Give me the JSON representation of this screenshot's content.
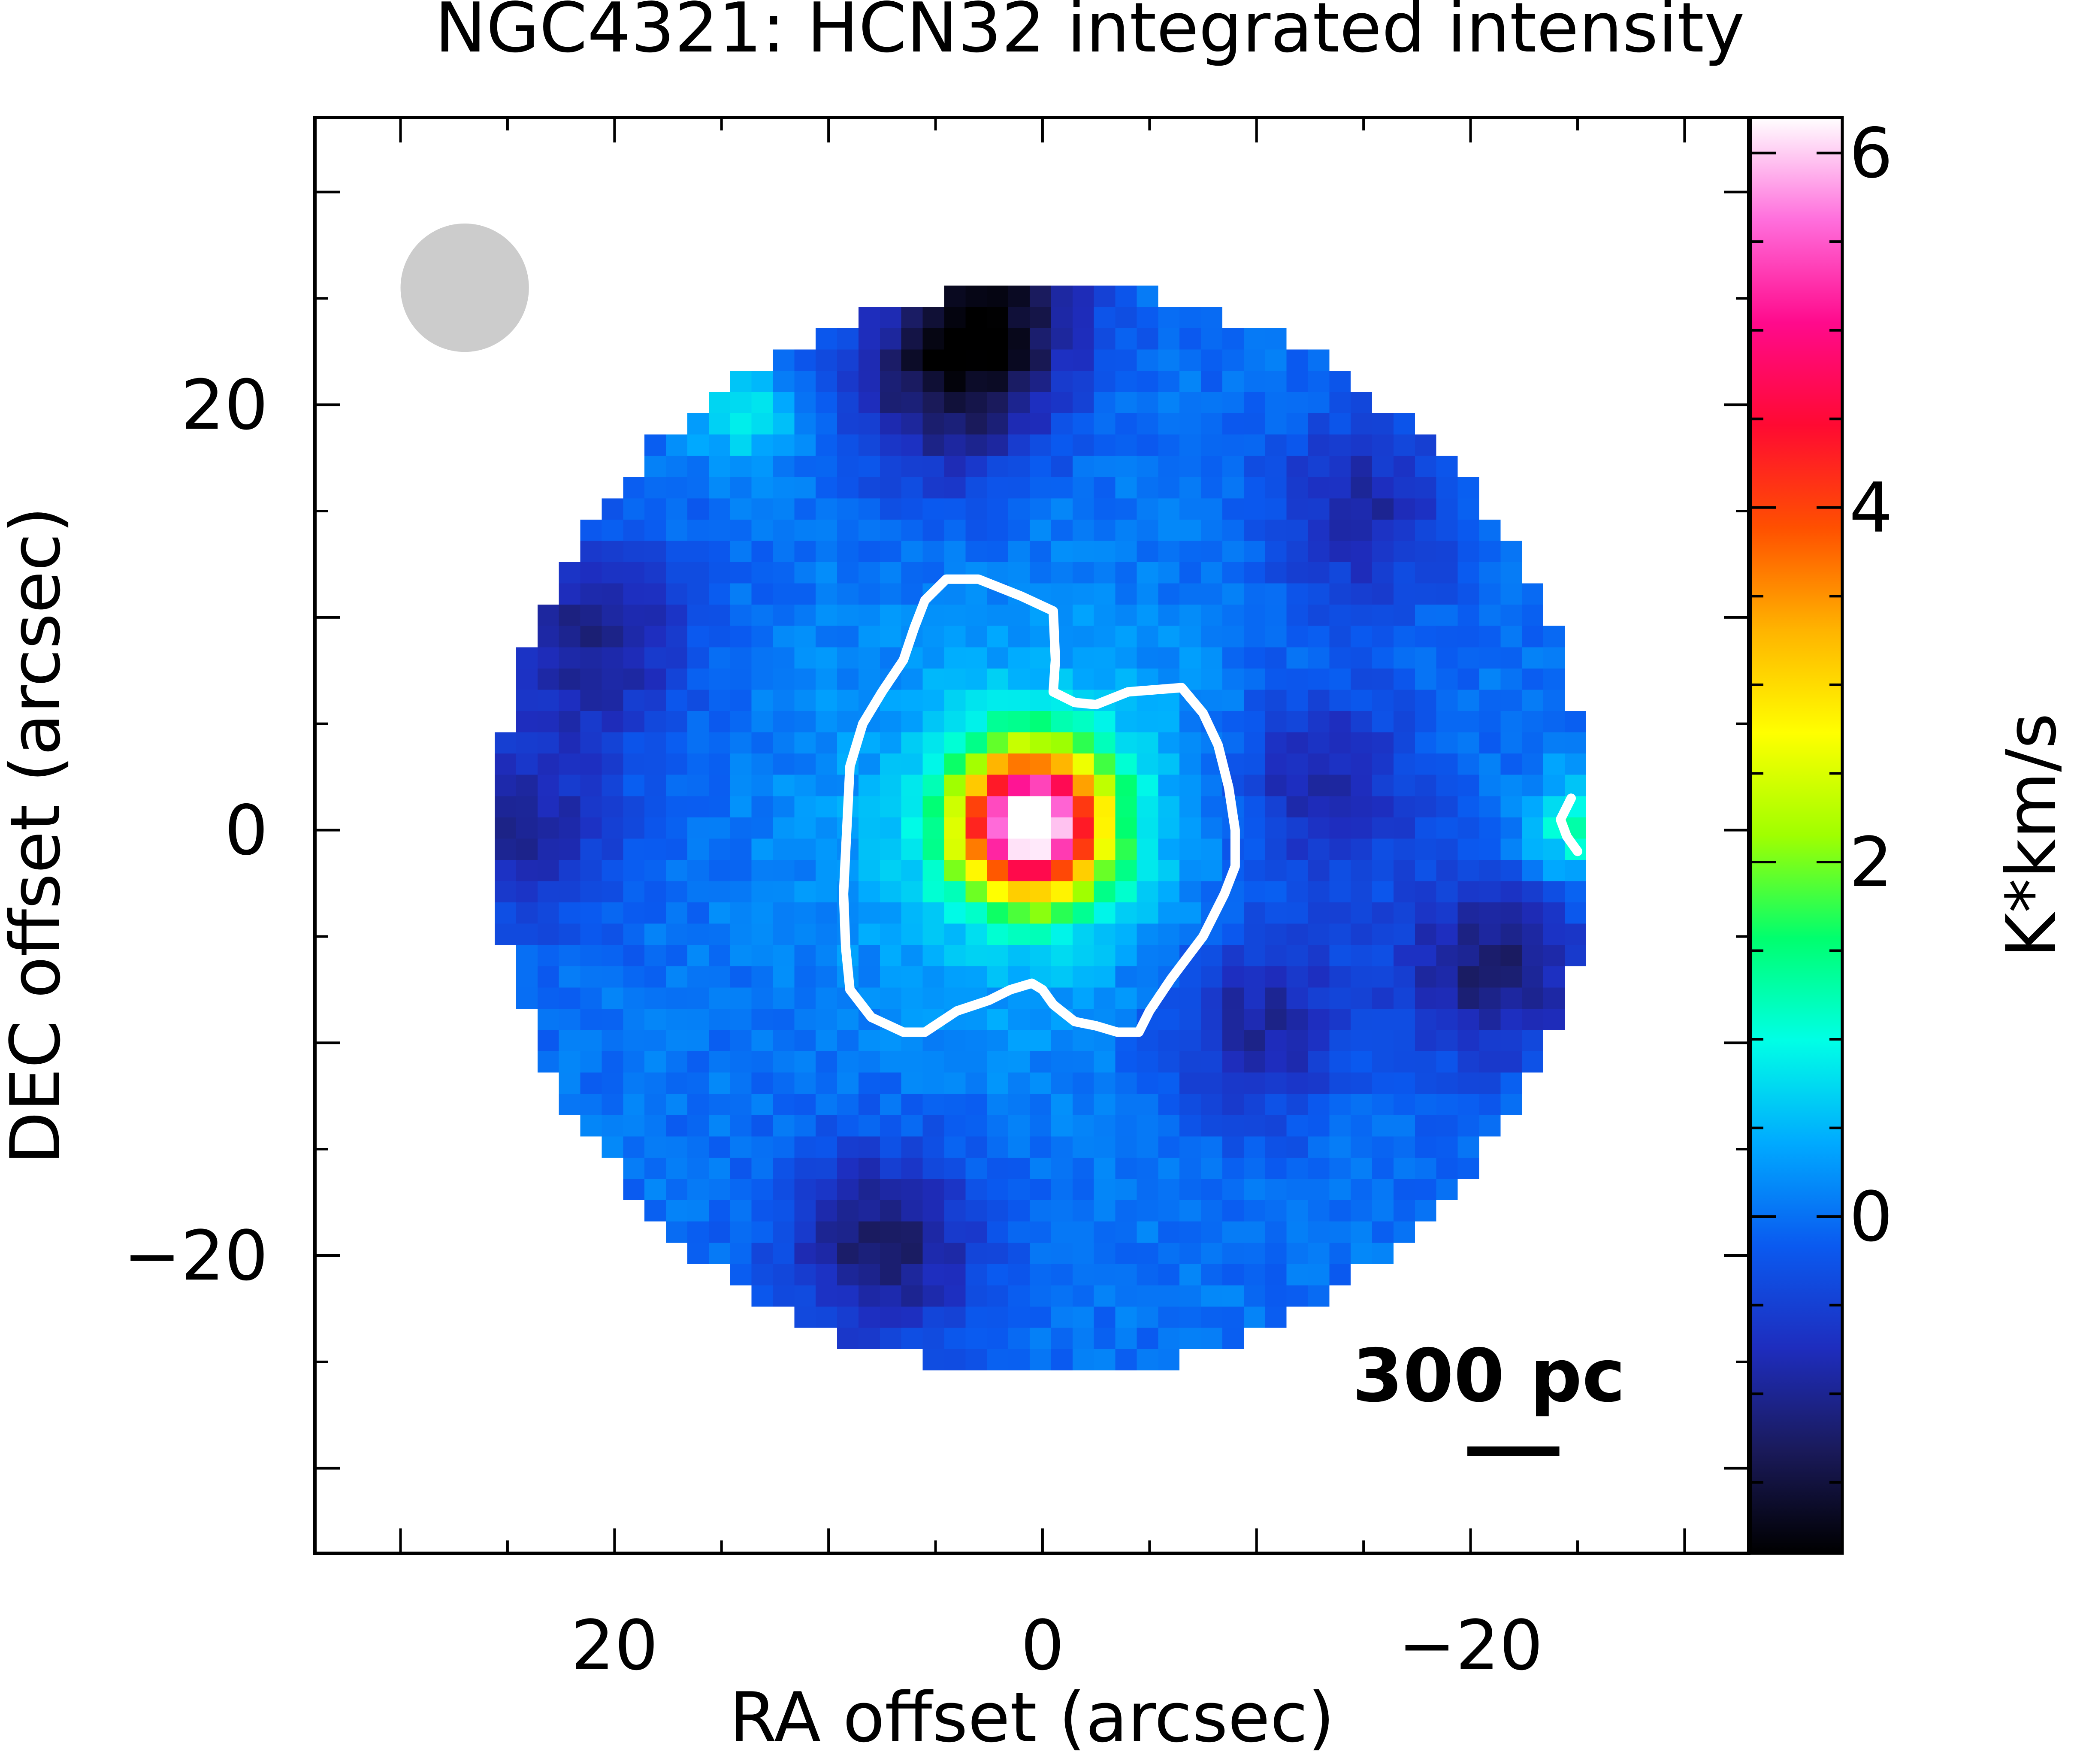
{
  "chart_data": {
    "type": "heatmap",
    "title": "NGC4321: HCN32 integrated intensity",
    "xlabel": "RA offset (arcsec)",
    "ylabel": "DEC offset (arcsec)",
    "xlim": [
      34,
      -33
    ],
    "ylim": [
      -34,
      33.5
    ],
    "x_ticks": [
      20,
      0,
      -20
    ],
    "x_tick_labels": [
      "20",
      "0",
      "−20"
    ],
    "y_ticks": [
      20,
      0,
      -20
    ],
    "y_tick_labels": [
      "20",
      "0",
      "−20"
    ],
    "colorbar": {
      "label": "K*km/s",
      "range": [
        -1.9,
        6.2
      ],
      "ticks": [
        0,
        2,
        4,
        6
      ],
      "tick_labels": [
        "0",
        "2",
        "4",
        "6"
      ],
      "colormap": [
        "#000000",
        "#1a1a5a",
        "#1e2dbe",
        "#0a5af0",
        "#00aaff",
        "#00ffe6",
        "#00ff6e",
        "#a0ff00",
        "#ffff00",
        "#ffb400",
        "#ff5000",
        "#ff0a32",
        "#ff0a8c",
        "#ff6edc",
        "#ffffff"
      ]
    },
    "map": {
      "field_radius_arcsec": 25.6,
      "pixel_arcsec": 1,
      "background_level": 0.0,
      "peak": {
        "ra": 0.5,
        "dec": 0.3,
        "value": 6.1
      },
      "low_regions": [
        {
          "ra": 2.7,
          "dec": 24.1,
          "value": -1.7
        },
        {
          "ra": -21.0,
          "dec": -6.5,
          "value": -1.2
        },
        {
          "ra": -13.0,
          "dec": 2.0,
          "value": -1.0
        },
        {
          "ra": 21.0,
          "dec": 9.0,
          "value": -1.1
        },
        {
          "ra": 24.5,
          "dec": 0.0,
          "value": -1.0
        },
        {
          "ra": 7.5,
          "dec": -19.5,
          "value": -1.3
        },
        {
          "ra": -15.0,
          "dec": 15.0,
          "value": -0.9
        },
        {
          "ra": -10.0,
          "dec": -9.0,
          "value": -1.0
        },
        {
          "ra": 5.0,
          "dec": 20.0,
          "value": -0.9
        }
      ],
      "high_regions": [
        {
          "ra": 13.8,
          "dec": 19.5,
          "value": 0.8
        },
        {
          "ra": -25.0,
          "dec": 0.0,
          "value": 1.2
        }
      ]
    },
    "contours": [
      {
        "level": "white contour",
        "color": "#ffffff",
        "points": [
          [
            3.0,
            11.8
          ],
          [
            1.0,
            11.0
          ],
          [
            -0.5,
            10.3
          ],
          [
            -0.6,
            8.0
          ],
          [
            -0.5,
            6.5
          ],
          [
            -1.5,
            6.0
          ],
          [
            -2.5,
            5.9
          ],
          [
            -4.0,
            6.5
          ],
          [
            -6.5,
            6.7
          ],
          [
            -7.5,
            5.5
          ],
          [
            -8.2,
            4.0
          ],
          [
            -8.7,
            2.0
          ],
          [
            -9.0,
            0.0
          ],
          [
            -9.0,
            -1.7
          ],
          [
            -8.5,
            -3.0
          ],
          [
            -7.5,
            -5.0
          ],
          [
            -6.0,
            -7.0
          ],
          [
            -5.0,
            -8.5
          ],
          [
            -4.5,
            -9.5
          ],
          [
            -3.5,
            -9.5
          ],
          [
            -2.5,
            -9.2
          ],
          [
            -1.5,
            -9.0
          ],
          [
            -0.5,
            -8.2
          ],
          [
            0.0,
            -7.5
          ],
          [
            0.5,
            -7.2
          ],
          [
            1.5,
            -7.5
          ],
          [
            2.5,
            -8.0
          ],
          [
            4.0,
            -8.5
          ],
          [
            5.5,
            -9.5
          ],
          [
            6.5,
            -9.5
          ],
          [
            8.0,
            -8.8
          ],
          [
            9.0,
            -7.5
          ],
          [
            9.2,
            -5.5
          ],
          [
            9.3,
            -3.0
          ],
          [
            9.2,
            -1.0
          ],
          [
            9.1,
            1.0
          ],
          [
            9.0,
            3.0
          ],
          [
            8.4,
            5.0
          ],
          [
            7.5,
            6.5
          ],
          [
            6.5,
            8.0
          ],
          [
            6.0,
            9.5
          ],
          [
            5.5,
            10.8
          ],
          [
            4.5,
            11.8
          ]
        ]
      },
      {
        "level": "white contour (edge)",
        "color": "#ffffff",
        "points": [
          [
            -24.7,
            1.5
          ],
          [
            -24.2,
            0.5
          ],
          [
            -24.5,
            -0.3
          ],
          [
            -25.0,
            -1.0
          ]
        ]
      }
    ],
    "beam": {
      "ra": 27.0,
      "dec": 25.5,
      "diameter_arcsec": 6.0,
      "color": "#cccccc"
    },
    "scalebar": {
      "label": "300 pc",
      "length_arcsec": 4.3,
      "ra_center": -22.0,
      "dec": -29.2
    },
    "grid": false,
    "legend": "none"
  }
}
